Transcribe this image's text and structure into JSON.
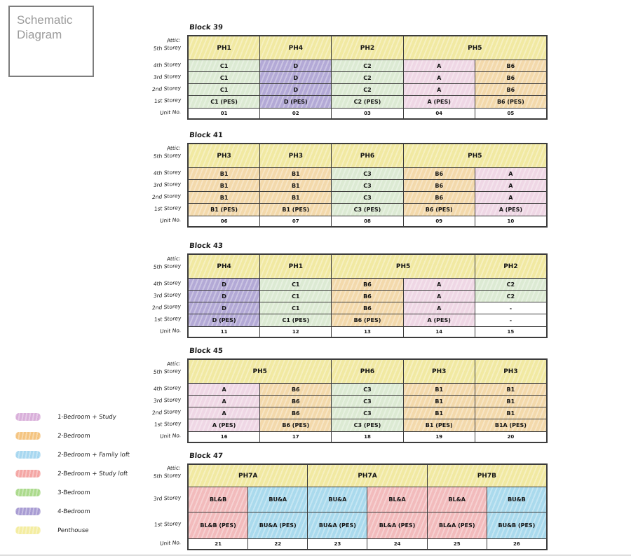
{
  "title_box": {
    "line1": "Schematic",
    "line2": "Diagram"
  },
  "colors": {
    "yellow": "#f1e9a2",
    "green": "#dcead3",
    "purple": "#b3a9d6",
    "pink": "#efd7e5",
    "orange": "#f3d9ab",
    "blue": "#aadaed",
    "red": "#f2bbbc",
    "white": "#ffffff"
  },
  "blocks": [
    {
      "name": "Block 39",
      "row_labels": [
        "Attic:",
        "5th Storey",
        "4th Storey",
        "3rd Storey",
        "2nd Storey",
        "1st Storey",
        "Unit No."
      ],
      "header": [
        {
          "label": "PH1",
          "span": 1
        },
        {
          "label": "PH4",
          "span": 1
        },
        {
          "label": "PH2",
          "span": 1
        },
        {
          "label": "PH5",
          "span": 2
        }
      ],
      "rows": [
        {
          "cells": [
            {
              "t": "C1",
              "c": "green"
            },
            {
              "t": "D",
              "c": "purple"
            },
            {
              "t": "C2",
              "c": "green"
            },
            {
              "t": "A",
              "c": "pink"
            },
            {
              "t": "B6",
              "c": "orange"
            }
          ]
        },
        {
          "cells": [
            {
              "t": "C1",
              "c": "green"
            },
            {
              "t": "D",
              "c": "purple"
            },
            {
              "t": "C2",
              "c": "green"
            },
            {
              "t": "A",
              "c": "pink"
            },
            {
              "t": "B6",
              "c": "orange"
            }
          ]
        },
        {
          "cells": [
            {
              "t": "C1",
              "c": "green"
            },
            {
              "t": "D",
              "c": "purple"
            },
            {
              "t": "C2",
              "c": "green"
            },
            {
              "t": "A",
              "c": "pink"
            },
            {
              "t": "B6",
              "c": "orange"
            }
          ]
        },
        {
          "cells": [
            {
              "t": "C1 (PES)",
              "c": "green"
            },
            {
              "t": "D (PES)",
              "c": "purple"
            },
            {
              "t": "C2 (PES)",
              "c": "green"
            },
            {
              "t": "A (PES)",
              "c": "pink"
            },
            {
              "t": "B6 (PES)",
              "c": "orange"
            }
          ]
        }
      ],
      "units": [
        "01",
        "02",
        "03",
        "04",
        "05"
      ]
    },
    {
      "name": "Block 41",
      "row_labels": [
        "Attic:",
        "5th Storey",
        "4th Storey",
        "3rd Storey",
        "2nd Storey",
        "1st Storey",
        "Unit No."
      ],
      "header": [
        {
          "label": "PH3",
          "span": 1
        },
        {
          "label": "PH3",
          "span": 1
        },
        {
          "label": "PH6",
          "span": 1
        },
        {
          "label": "PH5",
          "span": 2
        }
      ],
      "rows": [
        {
          "cells": [
            {
              "t": "B1",
              "c": "orange"
            },
            {
              "t": "B1",
              "c": "orange"
            },
            {
              "t": "C3",
              "c": "green"
            },
            {
              "t": "B6",
              "c": "orange"
            },
            {
              "t": "A",
              "c": "pink"
            }
          ]
        },
        {
          "cells": [
            {
              "t": "B1",
              "c": "orange"
            },
            {
              "t": "B1",
              "c": "orange"
            },
            {
              "t": "C3",
              "c": "green"
            },
            {
              "t": "B6",
              "c": "orange"
            },
            {
              "t": "A",
              "c": "pink"
            }
          ]
        },
        {
          "cells": [
            {
              "t": "B1",
              "c": "orange"
            },
            {
              "t": "B1",
              "c": "orange"
            },
            {
              "t": "C3",
              "c": "green"
            },
            {
              "t": "B6",
              "c": "orange"
            },
            {
              "t": "A",
              "c": "pink"
            }
          ]
        },
        {
          "cells": [
            {
              "t": "B1 (PES)",
              "c": "orange"
            },
            {
              "t": "B1 (PES)",
              "c": "orange"
            },
            {
              "t": "C3 (PES)",
              "c": "green"
            },
            {
              "t": "B6 (PES)",
              "c": "orange"
            },
            {
              "t": "A (PES)",
              "c": "pink"
            }
          ]
        }
      ],
      "units": [
        "06",
        "07",
        "08",
        "09",
        "10"
      ]
    },
    {
      "name": "Block 43",
      "row_labels": [
        "Attic:",
        "5th Storey",
        "4th Storey",
        "3rd Storey",
        "2nd Storey",
        "1st Storey",
        "Unit No."
      ],
      "header": [
        {
          "label": "PH4",
          "span": 1
        },
        {
          "label": "PH1",
          "span": 1
        },
        {
          "label": "PH5",
          "span": 2
        },
        {
          "label": "PH2",
          "span": 1
        }
      ],
      "rows": [
        {
          "cells": [
            {
              "t": "D",
              "c": "purple"
            },
            {
              "t": "C1",
              "c": "green"
            },
            {
              "t": "B6",
              "c": "orange"
            },
            {
              "t": "A",
              "c": "pink"
            },
            {
              "t": "C2",
              "c": "green"
            }
          ]
        },
        {
          "cells": [
            {
              "t": "D",
              "c": "purple"
            },
            {
              "t": "C1",
              "c": "green"
            },
            {
              "t": "B6",
              "c": "orange"
            },
            {
              "t": "A",
              "c": "pink"
            },
            {
              "t": "C2",
              "c": "green"
            }
          ]
        },
        {
          "cells": [
            {
              "t": "D",
              "c": "purple"
            },
            {
              "t": "C1",
              "c": "green"
            },
            {
              "t": "B6",
              "c": "orange"
            },
            {
              "t": "A",
              "c": "pink"
            },
            {
              "t": "-",
              "c": "white"
            }
          ]
        },
        {
          "cells": [
            {
              "t": "D (PES)",
              "c": "purple"
            },
            {
              "t": "C1 (PES)",
              "c": "green"
            },
            {
              "t": "B6 (PES)",
              "c": "orange"
            },
            {
              "t": "A (PES)",
              "c": "pink"
            },
            {
              "t": "-",
              "c": "white"
            }
          ]
        }
      ],
      "units": [
        "11",
        "12",
        "13",
        "14",
        "15"
      ]
    },
    {
      "name": "Block 45",
      "row_labels": [
        "Attic:",
        "5th Storey",
        "4th Storey",
        "3rd Storey",
        "2nd Storey",
        "1st Storey",
        "Unit No."
      ],
      "header": [
        {
          "label": "PH5",
          "span": 2
        },
        {
          "label": "PH6",
          "span": 1
        },
        {
          "label": "PH3",
          "span": 1
        },
        {
          "label": "PH3",
          "span": 1
        }
      ],
      "rows": [
        {
          "cells": [
            {
              "t": "A",
              "c": "pink"
            },
            {
              "t": "B6",
              "c": "orange"
            },
            {
              "t": "C3",
              "c": "green"
            },
            {
              "t": "B1",
              "c": "orange"
            },
            {
              "t": "B1",
              "c": "orange"
            }
          ]
        },
        {
          "cells": [
            {
              "t": "A",
              "c": "pink"
            },
            {
              "t": "B6",
              "c": "orange"
            },
            {
              "t": "C3",
              "c": "green"
            },
            {
              "t": "B1",
              "c": "orange"
            },
            {
              "t": "B1",
              "c": "orange"
            }
          ]
        },
        {
          "cells": [
            {
              "t": "A",
              "c": "pink"
            },
            {
              "t": "B6",
              "c": "orange"
            },
            {
              "t": "C3",
              "c": "green"
            },
            {
              "t": "B1",
              "c": "orange"
            },
            {
              "t": "B1",
              "c": "orange"
            }
          ]
        },
        {
          "cells": [
            {
              "t": "A (PES)",
              "c": "pink"
            },
            {
              "t": "B6 (PES)",
              "c": "orange"
            },
            {
              "t": "C3 (PES)",
              "c": "green"
            },
            {
              "t": "B1 (PES)",
              "c": "orange"
            },
            {
              "t": "B1A (PES)",
              "c": "orange"
            }
          ]
        }
      ],
      "units": [
        "16",
        "17",
        "18",
        "19",
        "20"
      ]
    },
    {
      "name": "Block 47",
      "row_labels": [
        "Attic:",
        "5th Storey",
        "3rd Storey",
        "1st Storey",
        "Unit No."
      ],
      "header": [
        {
          "label": "PH7A",
          "span": 2
        },
        {
          "label": "PH7A",
          "span": 2
        },
        {
          "label": "PH7B",
          "span": 2
        }
      ],
      "rows": [
        {
          "cells": [
            {
              "t": "BL&B",
              "c": "red"
            },
            {
              "t": "BU&A",
              "c": "blue"
            },
            {
              "t": "BU&A",
              "c": "blue"
            },
            {
              "t": "BL&A",
              "c": "red"
            },
            {
              "t": "BL&A",
              "c": "red"
            },
            {
              "t": "BU&B",
              "c": "blue"
            }
          ]
        },
        {
          "cells": [
            {
              "t": "BL&B (PES)",
              "c": "red"
            },
            {
              "t": "BU&A (PES)",
              "c": "blue"
            },
            {
              "t": "BU&A (PES)",
              "c": "blue"
            },
            {
              "t": "BL&A (PES)",
              "c": "red"
            },
            {
              "t": "BL&A (PES)",
              "c": "red"
            },
            {
              "t": "BU&B (PES)",
              "c": "blue"
            }
          ]
        }
      ],
      "units": [
        "21",
        "22",
        "23",
        "24",
        "25",
        "26"
      ]
    }
  ],
  "legend": {
    "items": [
      {
        "label": "1-Bedroom + Study",
        "color": "#d9afda"
      },
      {
        "label": "2-Bedroom",
        "color": "#f4c480"
      },
      {
        "label": "2-Bedroom + Family loft",
        "color": "#a7d7f0"
      },
      {
        "label": "2-Bedroom + Study loft",
        "color": "#f4a6a4"
      },
      {
        "label": "3-Bedroom",
        "color": "#abda8c"
      },
      {
        "label": "4-Bedroom",
        "color": "#a89cd3"
      },
      {
        "label": "Penthouse",
        "color": "#f4eda1"
      }
    ]
  }
}
